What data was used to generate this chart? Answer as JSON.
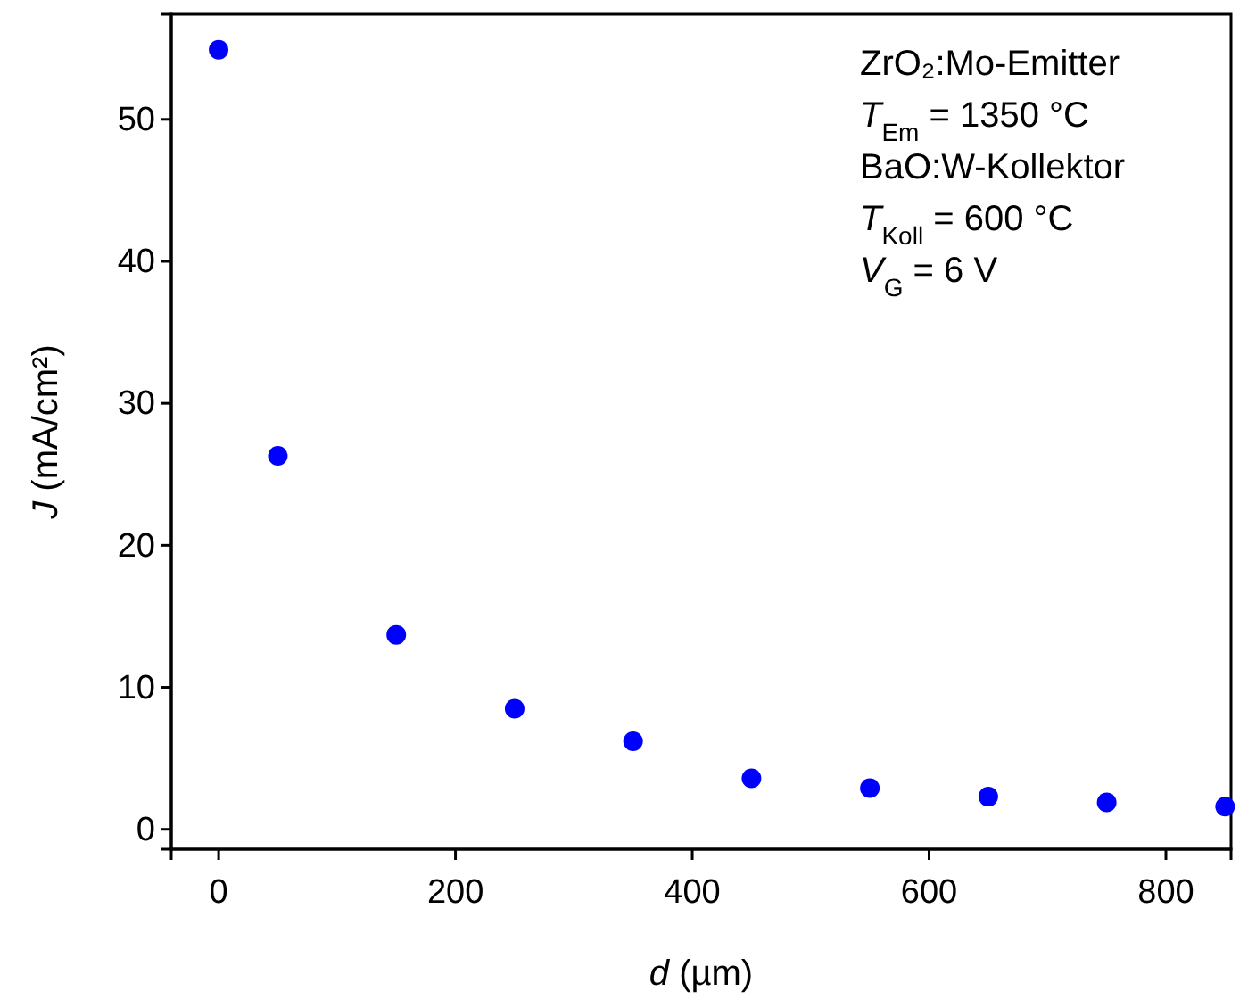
{
  "chart_data": {
    "type": "scatter",
    "xlabel": "d (µm)",
    "ylabel": "J (mA/cm²)",
    "x": [
      0,
      50,
      150,
      250,
      350,
      450,
      550,
      650,
      750,
      850
    ],
    "series": [
      {
        "color": "#0000ff",
        "values": [
          54.9,
          26.3,
          13.7,
          8.5,
          6.2,
          3.6,
          2.9,
          2.3,
          1.9,
          1.6
        ]
      }
    ],
    "xlim": [
      -40,
      855
    ],
    "ylim": [
      -1.4,
      57.4
    ],
    "xticks": [
      0,
      200,
      400,
      600,
      800
    ],
    "yticks": [
      0,
      10,
      20,
      30,
      40,
      50
    ],
    "marker": "circle",
    "grid": false,
    "annotations": [
      "ZrO₂:Mo-Emitter",
      "T$_{Em}$ = 1350 °C",
      "BaO:W-Kollektor",
      "T$_{Koll}$ = 600 °C",
      "V$_{G}$ = 6 V"
    ]
  }
}
